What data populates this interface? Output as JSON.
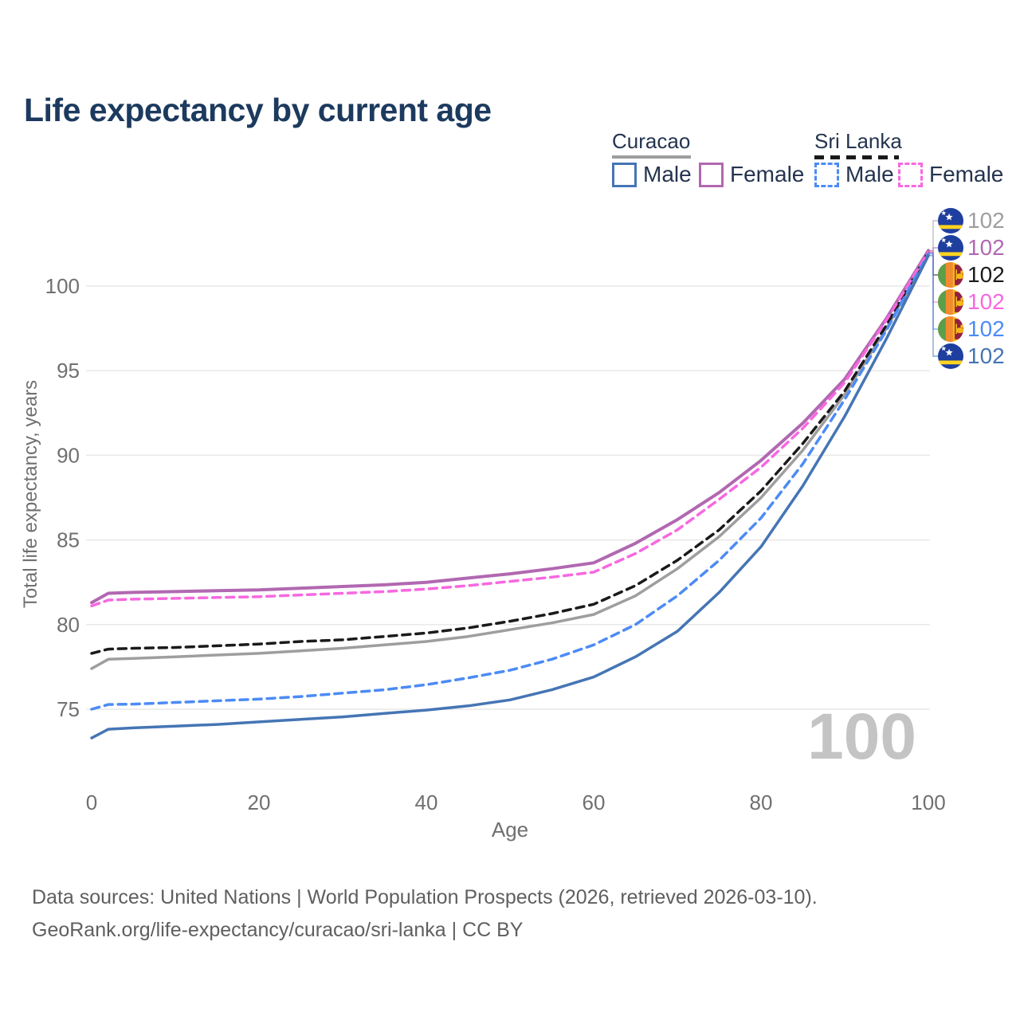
{
  "title": {
    "text": "Life expectancy by current age",
    "color": "#1c3a5e"
  },
  "legend": {
    "text_color": "#24344f",
    "groups": [
      {
        "name": "Curacao",
        "line_style": "solid",
        "underline_color": "#9e9e9e",
        "items": [
          {
            "label": "Male",
            "color": "#4575b4"
          },
          {
            "label": "Female",
            "color": "#b168b1"
          }
        ]
      },
      {
        "name": "Sri Lanka",
        "line_style": "dashed",
        "underline_color": "#1a1a1a",
        "items": [
          {
            "label": "Male",
            "color": "#4c8bf5"
          },
          {
            "label": "Female",
            "color": "#f768e0"
          }
        ]
      }
    ]
  },
  "chart_data": {
    "type": "line",
    "title": "Life expectancy by current age",
    "xlabel": "Age",
    "ylabel": "Total life expectancy, years",
    "xlim": [
      0,
      100
    ],
    "ylim": [
      72.8,
      103.2
    ],
    "xticks": [
      0,
      20,
      40,
      60,
      80,
      100
    ],
    "yticks": [
      75,
      80,
      85,
      90,
      95,
      100
    ],
    "grid": "horizontal-only",
    "legend_position": "top-right",
    "axis_text_color": "#707070",
    "gridline_color": "#e9e9e9",
    "x": [
      0,
      2,
      5,
      10,
      15,
      20,
      25,
      30,
      35,
      40,
      45,
      50,
      55,
      60,
      65,
      70,
      75,
      80,
      85,
      90,
      95,
      100
    ],
    "series": [
      {
        "name": "Curacao — Both sexes",
        "country": "Curacao",
        "sex": "Both",
        "color": "#9e9e9e",
        "dash": "solid",
        "end_label": "102",
        "values": [
          77.4,
          77.95,
          78.0,
          78.1,
          78.2,
          78.3,
          78.45,
          78.6,
          78.8,
          79.0,
          79.3,
          79.7,
          80.1,
          80.6,
          81.7,
          83.3,
          85.2,
          87.5,
          90.3,
          93.6,
          97.5,
          101.9
        ]
      },
      {
        "name": "Curacao — Female",
        "country": "Curacao",
        "sex": "Female",
        "color": "#b168b1",
        "dash": "solid",
        "end_label": "102",
        "values": [
          81.3,
          81.85,
          81.9,
          81.95,
          82.0,
          82.05,
          82.15,
          82.25,
          82.35,
          82.5,
          82.75,
          83.0,
          83.3,
          83.65,
          84.8,
          86.2,
          87.8,
          89.7,
          91.9,
          94.5,
          98.1,
          102.1
        ]
      },
      {
        "name": "Sri Lanka — Both sexes",
        "country": "Sri Lanka",
        "sex": "Both",
        "color": "#1a1a1a",
        "dash": "dashed",
        "end_label": "102",
        "values": [
          78.3,
          78.55,
          78.6,
          78.65,
          78.75,
          78.85,
          79.0,
          79.1,
          79.3,
          79.5,
          79.8,
          80.2,
          80.65,
          81.2,
          82.3,
          83.8,
          85.6,
          87.9,
          90.7,
          93.8,
          97.7,
          102.0
        ]
      },
      {
        "name": "Sri Lanka — Female",
        "country": "Sri Lanka",
        "sex": "Female",
        "color": "#f768e0",
        "dash": "dashed",
        "end_label": "102",
        "values": [
          81.1,
          81.45,
          81.5,
          81.55,
          81.6,
          81.65,
          81.75,
          81.85,
          81.95,
          82.1,
          82.3,
          82.55,
          82.8,
          83.1,
          84.2,
          85.6,
          87.4,
          89.3,
          91.6,
          94.3,
          98.0,
          102.0
        ]
      },
      {
        "name": "Sri Lanka — Male",
        "country": "Sri Lanka",
        "sex": "Male",
        "color": "#4c8bf5",
        "dash": "dashed",
        "end_label": "102",
        "values": [
          75.0,
          75.28,
          75.3,
          75.4,
          75.5,
          75.6,
          75.75,
          75.95,
          76.15,
          76.45,
          76.85,
          77.3,
          77.95,
          78.8,
          80.0,
          81.7,
          83.8,
          86.3,
          89.5,
          93.3,
          97.4,
          101.9
        ]
      },
      {
        "name": "Curacao — Male",
        "country": "Curacao",
        "sex": "Male",
        "color": "#4575b4",
        "dash": "solid",
        "end_label": "102",
        "values": [
          73.3,
          73.82,
          73.9,
          74.0,
          74.1,
          74.25,
          74.4,
          74.55,
          74.75,
          74.95,
          75.2,
          75.55,
          76.15,
          76.9,
          78.1,
          79.6,
          81.9,
          84.6,
          88.2,
          92.3,
          96.9,
          101.8
        ]
      }
    ],
    "end_labels": [
      {
        "value": "102",
        "flag": "curacao-flag-icon",
        "color": "#9e9e9e",
        "series": "Curacao — Both sexes"
      },
      {
        "value": "102",
        "flag": "curacao-flag-icon",
        "color": "#b168b1",
        "series": "Curacao — Female"
      },
      {
        "value": "102",
        "flag": "sri-lanka-flag-icon",
        "color": "#1a1a1a",
        "series": "Sri Lanka — Both sexes"
      },
      {
        "value": "102",
        "flag": "sri-lanka-flag-icon",
        "color": "#f768e0",
        "series": "Sri Lanka — Female"
      },
      {
        "value": "102",
        "flag": "sri-lanka-flag-icon",
        "color": "#4c8bf5",
        "series": "Sri Lanka — Male"
      },
      {
        "value": "102",
        "flag": "curacao-flag-icon",
        "color": "#4575b4",
        "series": "Curacao — Male"
      }
    ],
    "age_frame_indicator": "100"
  },
  "watermark": {
    "text": "100",
    "color": "#c4c4c4"
  },
  "footer": {
    "color": "#5f5f5f",
    "line1": "Data sources: United Nations | World Population Prospects (2026, retrieved 2026-03-10).",
    "line2": "GeoRank.org/life-expectancy/curacao/sri-lanka | CC BY"
  }
}
